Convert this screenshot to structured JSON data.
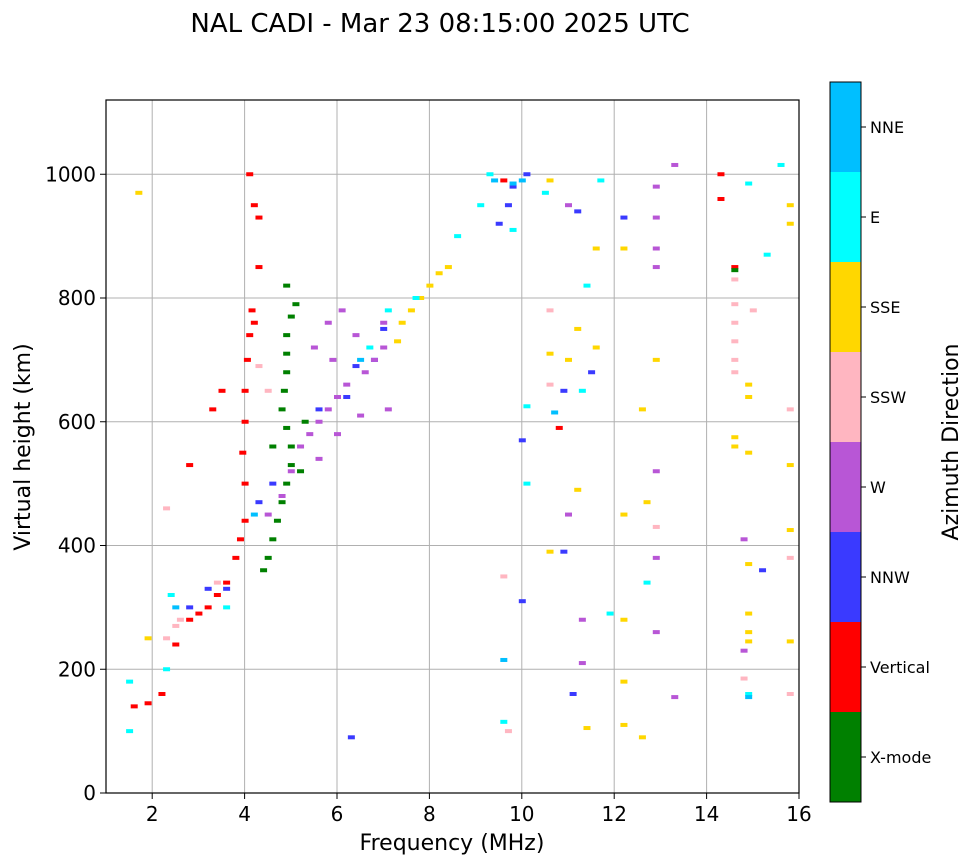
{
  "chart_data": {
    "type": "scatter",
    "title": "NAL CADI - Mar 23 08:15:00 2025 UTC",
    "xlabel": "Frequency (MHz)",
    "ylabel": "Virtual height (km)",
    "xlim": [
      1,
      16
    ],
    "ylim": [
      0,
      1120
    ],
    "xticks": [
      "2",
      "4",
      "6",
      "8",
      "10",
      "12",
      "14",
      "16"
    ],
    "yticks": [
      "0",
      "200",
      "400",
      "600",
      "800",
      "1000"
    ],
    "grid": true,
    "colorbar": {
      "label": "Azimuth Direction",
      "categories": [
        {
          "name": "X-mode",
          "color": "#008000"
        },
        {
          "name": "Vertical",
          "color": "#ff0000"
        },
        {
          "name": "NNW",
          "color": "#3a3aff"
        },
        {
          "name": "W",
          "color": "#b856d6"
        },
        {
          "name": "SSW",
          "color": "#ffb6c1"
        },
        {
          "name": "SSE",
          "color": "#ffd700"
        },
        {
          "name": "E",
          "color": "#00ffff"
        },
        {
          "name": "NNE",
          "color": "#00bfff"
        }
      ]
    },
    "series": [
      {
        "name": "Vertical",
        "points": [
          [
            1.6,
            140
          ],
          [
            1.9,
            145
          ],
          [
            2.2,
            160
          ],
          [
            2.5,
            240
          ],
          [
            2.8,
            280
          ],
          [
            3.0,
            290
          ],
          [
            3.2,
            300
          ],
          [
            3.4,
            320
          ],
          [
            3.6,
            340
          ],
          [
            3.8,
            380
          ],
          [
            3.9,
            410
          ],
          [
            4.0,
            440
          ],
          [
            4.0,
            500
          ],
          [
            3.95,
            550
          ],
          [
            4.0,
            600
          ],
          [
            4.0,
            650
          ],
          [
            4.05,
            700
          ],
          [
            4.1,
            740
          ],
          [
            4.15,
            780
          ],
          [
            4.2,
            760
          ],
          [
            3.5,
            650
          ],
          [
            3.3,
            620
          ],
          [
            4.2,
            950
          ],
          [
            4.3,
            930
          ],
          [
            4.1,
            1000
          ],
          [
            4.3,
            850
          ],
          [
            2.8,
            530
          ],
          [
            9.6,
            990
          ],
          [
            10.8,
            590
          ],
          [
            14.3,
            1000
          ],
          [
            14.3,
            960
          ],
          [
            14.6,
            850
          ]
        ]
      },
      {
        "name": "X-mode",
        "points": [
          [
            4.4,
            360
          ],
          [
            4.5,
            380
          ],
          [
            4.6,
            410
          ],
          [
            4.7,
            440
          ],
          [
            4.8,
            470
          ],
          [
            4.9,
            500
          ],
          [
            5.0,
            530
          ],
          [
            5.0,
            560
          ],
          [
            4.9,
            590
          ],
          [
            4.8,
            620
          ],
          [
            4.85,
            650
          ],
          [
            4.9,
            680
          ],
          [
            4.9,
            710
          ],
          [
            4.9,
            740
          ],
          [
            5.0,
            770
          ],
          [
            5.1,
            790
          ],
          [
            4.6,
            560
          ],
          [
            5.3,
            600
          ],
          [
            5.2,
            520
          ],
          [
            4.9,
            820
          ],
          [
            14.6,
            845
          ]
        ]
      },
      {
        "name": "NNW",
        "points": [
          [
            2.8,
            300
          ],
          [
            3.2,
            330
          ],
          [
            3.6,
            330
          ],
          [
            4.3,
            470
          ],
          [
            4.6,
            500
          ],
          [
            5.6,
            620
          ],
          [
            6.2,
            640
          ],
          [
            6.4,
            690
          ],
          [
            6.8,
            700
          ],
          [
            7.0,
            750
          ],
          [
            9.5,
            920
          ],
          [
            9.7,
            950
          ],
          [
            10.1,
            1000
          ],
          [
            10.0,
            570
          ],
          [
            10.0,
            310
          ],
          [
            10.9,
            390
          ],
          [
            11.1,
            160
          ],
          [
            11.2,
            940
          ],
          [
            11.5,
            680
          ],
          [
            12.2,
            930
          ],
          [
            9.8,
            980
          ],
          [
            15.2,
            360
          ],
          [
            6.3,
            90
          ],
          [
            10.9,
            650
          ]
        ]
      },
      {
        "name": "W",
        "points": [
          [
            4.5,
            450
          ],
          [
            4.8,
            480
          ],
          [
            5.0,
            520
          ],
          [
            5.2,
            560
          ],
          [
            5.4,
            580
          ],
          [
            5.6,
            600
          ],
          [
            5.8,
            620
          ],
          [
            6.0,
            640
          ],
          [
            6.2,
            660
          ],
          [
            5.9,
            700
          ],
          [
            5.5,
            720
          ],
          [
            6.6,
            680
          ],
          [
            6.8,
            700
          ],
          [
            7.0,
            720
          ],
          [
            5.8,
            760
          ],
          [
            6.1,
            780
          ],
          [
            6.4,
            740
          ],
          [
            5.6,
            540
          ],
          [
            6.0,
            580
          ],
          [
            6.5,
            610
          ],
          [
            7.1,
            620
          ],
          [
            7.0,
            760
          ],
          [
            11.3,
            210
          ],
          [
            11.3,
            280
          ],
          [
            11.0,
            450
          ],
          [
            11.0,
            950
          ],
          [
            12.9,
            260
          ],
          [
            12.9,
            380
          ],
          [
            12.9,
            520
          ],
          [
            12.9,
            880
          ],
          [
            12.9,
            850
          ],
          [
            12.9,
            930
          ],
          [
            12.9,
            980
          ],
          [
            13.3,
            1015
          ],
          [
            13.3,
            155
          ],
          [
            14.8,
            410
          ],
          [
            14.8,
            230
          ]
        ]
      },
      {
        "name": "SSW",
        "points": [
          [
            2.3,
            250
          ],
          [
            2.5,
            270
          ],
          [
            2.6,
            280
          ],
          [
            3.4,
            340
          ],
          [
            4.5,
            650
          ],
          [
            4.3,
            690
          ],
          [
            2.3,
            460
          ],
          [
            9.7,
            100
          ],
          [
            10.6,
            660
          ],
          [
            10.6,
            780
          ],
          [
            14.6,
            760
          ],
          [
            14.6,
            730
          ],
          [
            14.6,
            700
          ],
          [
            14.6,
            680
          ],
          [
            14.6,
            830
          ],
          [
            14.6,
            790
          ],
          [
            15.0,
            780
          ],
          [
            15.8,
            620
          ],
          [
            15.8,
            160
          ],
          [
            15.8,
            380
          ],
          [
            12.9,
            430
          ],
          [
            14.8,
            185
          ],
          [
            9.6,
            350
          ]
        ]
      },
      {
        "name": "SSE",
        "points": [
          [
            1.7,
            970
          ],
          [
            1.9,
            250
          ],
          [
            7.3,
            730
          ],
          [
            7.4,
            760
          ],
          [
            7.6,
            780
          ],
          [
            7.8,
            800
          ],
          [
            8.0,
            820
          ],
          [
            8.2,
            840
          ],
          [
            8.4,
            850
          ],
          [
            10.6,
            990
          ],
          [
            10.6,
            710
          ],
          [
            10.6,
            390
          ],
          [
            11.0,
            700
          ],
          [
            11.2,
            750
          ],
          [
            11.2,
            490
          ],
          [
            11.6,
            720
          ],
          [
            11.6,
            880
          ],
          [
            12.2,
            880
          ],
          [
            12.2,
            450
          ],
          [
            12.2,
            280
          ],
          [
            12.2,
            180
          ],
          [
            12.2,
            110
          ],
          [
            12.6,
            620
          ],
          [
            12.7,
            470
          ],
          [
            12.9,
            700
          ],
          [
            12.6,
            90
          ],
          [
            14.6,
            575
          ],
          [
            14.6,
            560
          ],
          [
            14.9,
            660
          ],
          [
            14.9,
            640
          ],
          [
            14.9,
            550
          ],
          [
            14.9,
            370
          ],
          [
            14.9,
            290
          ],
          [
            14.9,
            260
          ],
          [
            14.9,
            245
          ],
          [
            15.8,
            950
          ],
          [
            15.8,
            920
          ],
          [
            15.8,
            530
          ],
          [
            15.8,
            425
          ],
          [
            15.8,
            245
          ],
          [
            11.4,
            105
          ]
        ]
      },
      {
        "name": "E",
        "points": [
          [
            1.5,
            100
          ],
          [
            1.5,
            180
          ],
          [
            2.3,
            200
          ],
          [
            2.4,
            320
          ],
          [
            3.6,
            300
          ],
          [
            6.7,
            720
          ],
          [
            7.1,
            780
          ],
          [
            7.7,
            800
          ],
          [
            8.6,
            900
          ],
          [
            9.1,
            950
          ],
          [
            9.3,
            1000
          ],
          [
            9.8,
            910
          ],
          [
            10.1,
            625
          ],
          [
            10.1,
            500
          ],
          [
            10.5,
            970
          ],
          [
            11.4,
            820
          ],
          [
            11.3,
            650
          ],
          [
            11.7,
            990
          ],
          [
            11.9,
            290
          ],
          [
            12.7,
            340
          ],
          [
            14.9,
            160
          ],
          [
            15.3,
            870
          ],
          [
            15.6,
            1015
          ],
          [
            14.9,
            985
          ],
          [
            9.6,
            115
          ]
        ]
      },
      {
        "name": "NNE",
        "points": [
          [
            2.5,
            300
          ],
          [
            4.2,
            450
          ],
          [
            6.5,
            700
          ],
          [
            9.4,
            990
          ],
          [
            9.6,
            215
          ],
          [
            9.8,
            985
          ],
          [
            10.7,
            615
          ],
          [
            10.0,
            990
          ],
          [
            14.9,
            155
          ]
        ]
      }
    ]
  }
}
